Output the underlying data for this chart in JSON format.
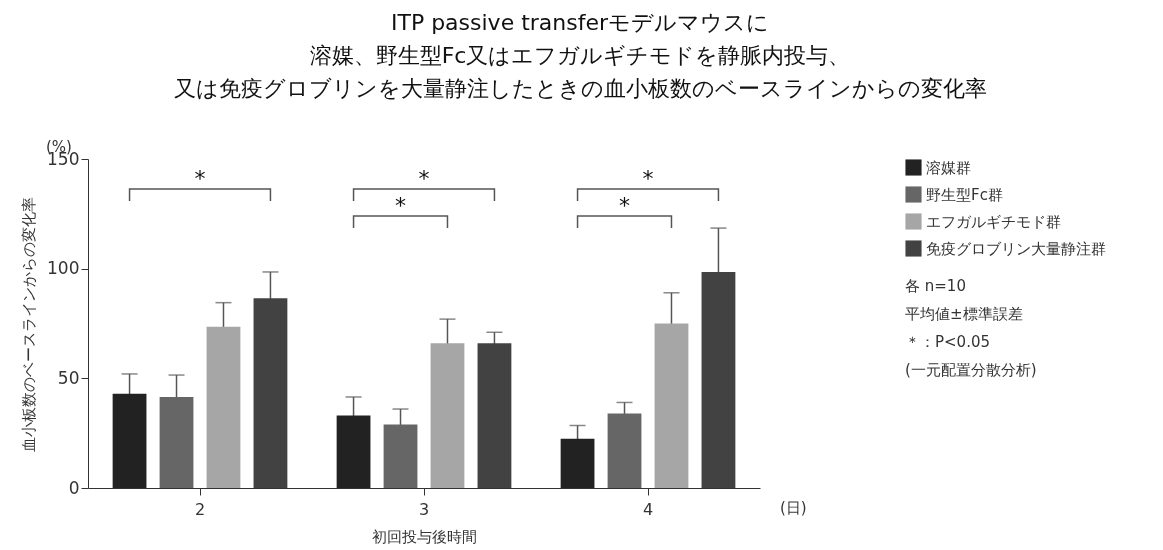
{
  "chart_data": {
    "type": "bar",
    "title": [
      "ITP passive transferモデルマウスに",
      "溶媒、野生型Fc又はエフガルギチモドを静脈内投与、",
      "又は免疫グロブリンを大量静注したときの血小板数のベースラインからの変化率"
    ],
    "xlabel": "初回投与後時間",
    "ylabel": "血小板数のベースラインからの変化率",
    "categories": [
      "2",
      "3",
      "4"
    ],
    "series": [
      {
        "name": "溶媒群",
        "color": "#222222",
        "values": [
          43,
          33,
          22.5
        ],
        "errors": [
          9,
          8.5,
          6
        ]
      },
      {
        "name": "野生型Fc群",
        "color": "#666666",
        "values": [
          41.5,
          29,
          34
        ],
        "errors": [
          10,
          7,
          5
        ]
      },
      {
        "name": "エフガルギチモド群",
        "color": "#a6a6a6",
        "values": [
          73.5,
          66,
          75
        ],
        "errors": [
          11,
          11,
          14
        ]
      },
      {
        "name": "免疫グロブリン大量静注群",
        "color": "#424242",
        "values": [
          86.5,
          66,
          98.5
        ],
        "errors": [
          12,
          5,
          20
        ]
      }
    ],
    "ylim": [
      0,
      150
    ],
    "yticks": [
      0,
      50,
      100,
      150
    ],
    "legend": "right",
    "grid": false,
    "annotations": [
      "(%)",
      "(日)",
      "各 n=10",
      "平均値±標準誤差",
      "＊：P<0.05",
      "(一元配置分散分析)",
      "*",
      "*",
      "*",
      "*",
      "*"
    ]
  }
}
